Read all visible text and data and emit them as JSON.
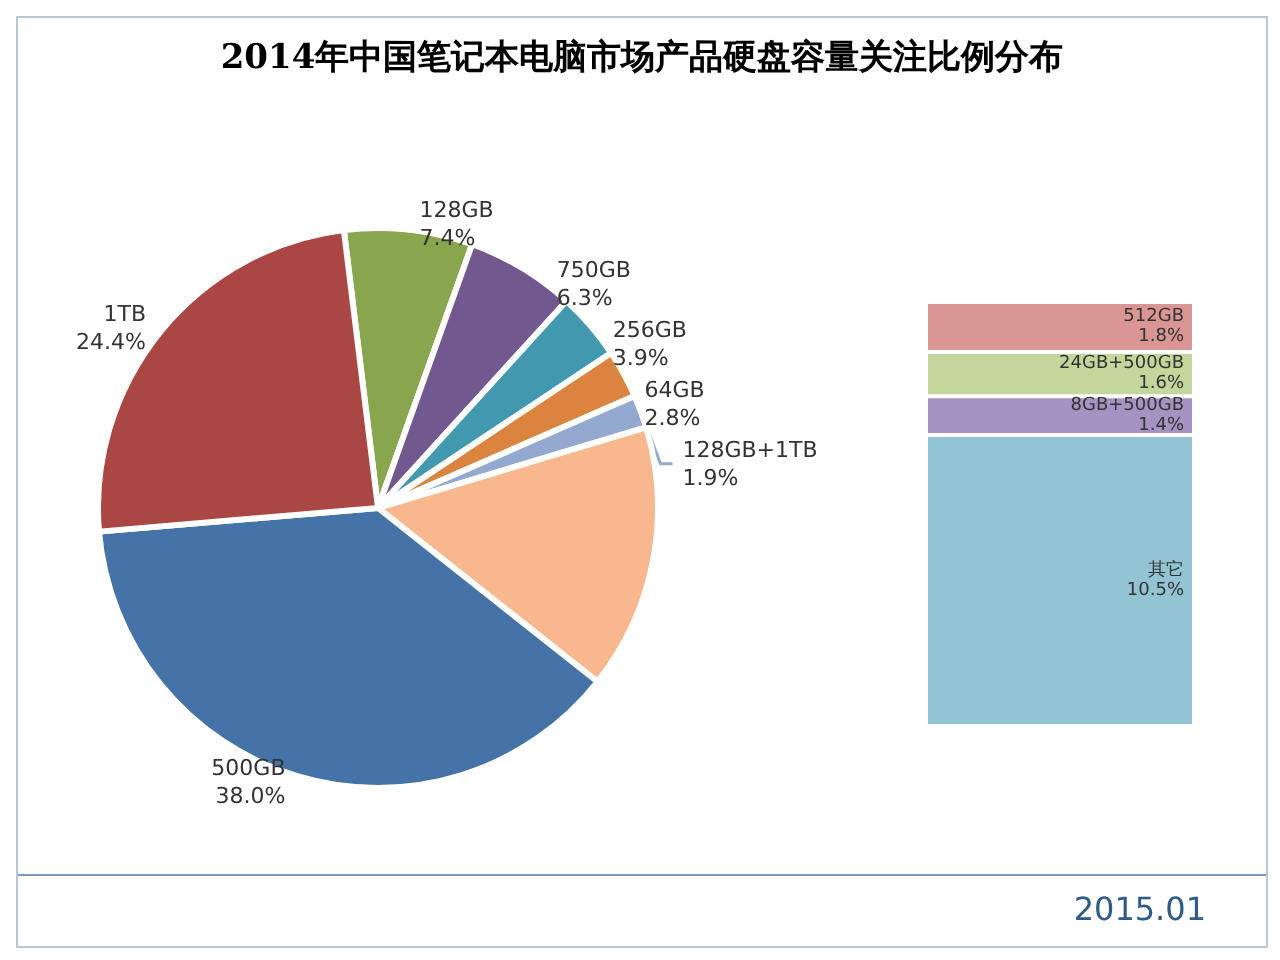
{
  "chart_data": [
    {
      "type": "pie",
      "title": "2014年中国笔记本电脑市场产品硬盘容量关注比例分布",
      "annotations": [
        "2015.01"
      ],
      "categories": [
        "128GB",
        "750GB",
        "256GB",
        "64GB",
        "128GB+1TB",
        null,
        "500GB",
        "1TB"
      ],
      "values": [
        7.4,
        6.3,
        3.9,
        2.8,
        1.9,
        15.3,
        38.0,
        24.4
      ],
      "value_labels": [
        "7.4%",
        "6.3%",
        "3.9%",
        "2.8%",
        "1.9%",
        null,
        "38.0%",
        "24.4%"
      ],
      "colors": [
        "#89a54e",
        "#71588f",
        "#4198af",
        "#db843d",
        "#93a9cf",
        "#f9b78e",
        "#4572a7",
        "#aa4643"
      ]
    },
    {
      "type": "bar",
      "stacked": true,
      "categories": [
        null
      ],
      "series": [
        {
          "name": "其它",
          "color": "#93c4d4",
          "values": [
            10.5
          ],
          "value_labels": [
            "10.5%"
          ]
        },
        {
          "name": "8GB+500GB",
          "color": "#a593c3",
          "values": [
            1.4
          ],
          "value_labels": [
            "1.4%"
          ]
        },
        {
          "name": "24GB+500GB",
          "color": "#c3d69b",
          "values": [
            1.6
          ],
          "value_labels": [
            "1.6%"
          ]
        },
        {
          "name": "512GB",
          "color": "#d99694",
          "values": [
            1.8
          ],
          "value_labels": [
            "1.8%"
          ]
        }
      ]
    }
  ]
}
